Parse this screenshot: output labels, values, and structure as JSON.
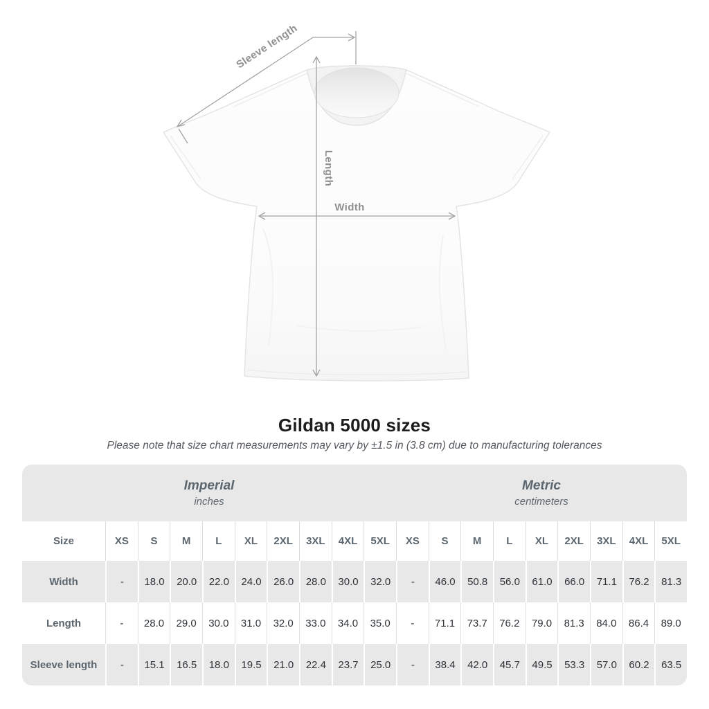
{
  "title": "Gildan 5000 sizes",
  "subtitle": "Please note that size chart measurements may vary by ±1.5 in (3.8 cm) due to manufacturing tolerances",
  "shirt_diagram": {
    "labels": {
      "sleeve_length": "Sleeve length",
      "length": "Length",
      "width": "Width"
    },
    "arrow_color": "#a3a3a3",
    "label_color": "#8f8f8f",
    "shirt_color": "#fcfcfc"
  },
  "size_table": {
    "groups": [
      {
        "label": "Imperial",
        "sublabel": "inches"
      },
      {
        "label": "Metric",
        "sublabel": "centimeters"
      }
    ],
    "size_header": "Size",
    "sizes": [
      "XS",
      "S",
      "M",
      "L",
      "XL",
      "2XL",
      "3XL",
      "4XL",
      "5XL"
    ],
    "rows": [
      {
        "label": "Width",
        "imperial": [
          "-",
          "18.0",
          "20.0",
          "22.0",
          "24.0",
          "26.0",
          "28.0",
          "30.0",
          "32.0"
        ],
        "metric": [
          "-",
          "46.0",
          "50.8",
          "56.0",
          "61.0",
          "66.0",
          "71.1",
          "76.2",
          "81.3"
        ]
      },
      {
        "label": "Length",
        "imperial": [
          "-",
          "28.0",
          "29.0",
          "30.0",
          "31.0",
          "32.0",
          "33.0",
          "34.0",
          "35.0"
        ],
        "metric": [
          "-",
          "71.1",
          "73.7",
          "76.2",
          "79.0",
          "81.3",
          "84.0",
          "86.4",
          "89.0"
        ]
      },
      {
        "label": "Sleeve length",
        "imperial": [
          "-",
          "15.1",
          "16.5",
          "18.0",
          "19.5",
          "21.0",
          "22.4",
          "23.7",
          "25.0"
        ],
        "metric": [
          "-",
          "38.4",
          "42.0",
          "45.7",
          "49.5",
          "53.3",
          "57.0",
          "60.2",
          "63.5"
        ]
      }
    ],
    "colors": {
      "band_background": "#e8e8e8",
      "alt_row_background": "#e8e8e8",
      "header_text": "#5c666e",
      "value_text": "#2e3338"
    }
  }
}
